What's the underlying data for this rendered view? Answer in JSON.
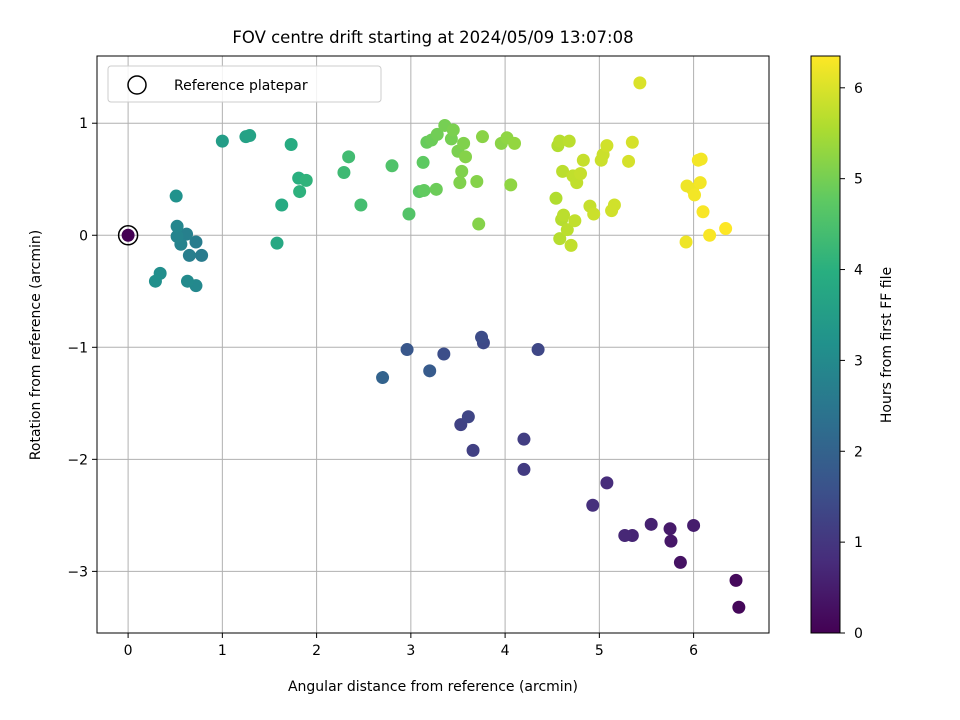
{
  "chart_data": {
    "type": "scatter",
    "title": "FOV centre drift starting at 2024/05/09 13:07:08",
    "xlabel": "Angular distance from reference (arcmin)",
    "ylabel": "Rotation from reference (arcmin)",
    "xlim": [
      -0.33,
      6.8
    ],
    "ylim": [
      -3.55,
      1.6
    ],
    "xticks": [
      0,
      1,
      2,
      3,
      4,
      5,
      6
    ],
    "yticks": [
      -3,
      -2,
      -1,
      0,
      1
    ],
    "xtick_labels": [
      "0",
      "1",
      "2",
      "3",
      "4",
      "5",
      "6"
    ],
    "ytick_labels": [
      "−3",
      "−2",
      "−1",
      "0",
      "1"
    ],
    "grid": true,
    "legend": {
      "position": "top-left",
      "entries": [
        {
          "label": "Reference platepar",
          "marker": "open-circle"
        }
      ]
    },
    "reference_point": {
      "x": 0,
      "y": 0
    },
    "colormap": "viridis",
    "colorbar": {
      "label": "Hours from first FF file",
      "range": [
        0,
        6.35
      ],
      "ticks": [
        0,
        1,
        2,
        3,
        4,
        5,
        6
      ],
      "tick_labels": [
        "0",
        "1",
        "2",
        "3",
        "4",
        "5",
        "6"
      ]
    },
    "points": [
      {
        "x": 0.0,
        "y": 0.0,
        "h": 0.0
      },
      {
        "x": 6.48,
        "y": -3.32,
        "h": 0.1
      },
      {
        "x": 6.45,
        "y": -3.08,
        "h": 0.15
      },
      {
        "x": 5.86,
        "y": -2.92,
        "h": 0.3
      },
      {
        "x": 5.76,
        "y": -2.73,
        "h": 0.4
      },
      {
        "x": 5.75,
        "y": -2.62,
        "h": 0.45
      },
      {
        "x": 6.0,
        "y": -2.59,
        "h": 0.5
      },
      {
        "x": 5.55,
        "y": -2.58,
        "h": 0.6
      },
      {
        "x": 5.35,
        "y": -2.68,
        "h": 0.65
      },
      {
        "x": 5.27,
        "y": -2.68,
        "h": 0.7
      },
      {
        "x": 5.08,
        "y": -2.21,
        "h": 0.8
      },
      {
        "x": 4.93,
        "y": -2.41,
        "h": 0.85
      },
      {
        "x": 4.2,
        "y": -2.09,
        "h": 1.1
      },
      {
        "x": 4.2,
        "y": -1.82,
        "h": 1.15
      },
      {
        "x": 3.66,
        "y": -1.92,
        "h": 1.2
      },
      {
        "x": 3.53,
        "y": -1.69,
        "h": 1.25
      },
      {
        "x": 3.61,
        "y": -1.62,
        "h": 1.3
      },
      {
        "x": 4.35,
        "y": -1.02,
        "h": 1.35
      },
      {
        "x": 3.77,
        "y": -0.96,
        "h": 1.4
      },
      {
        "x": 3.75,
        "y": -0.91,
        "h": 1.45
      },
      {
        "x": 3.35,
        "y": -1.06,
        "h": 1.5
      },
      {
        "x": 2.96,
        "y": -1.02,
        "h": 1.7
      },
      {
        "x": 3.2,
        "y": -1.21,
        "h": 1.8
      },
      {
        "x": 2.7,
        "y": -1.27,
        "h": 2.0
      },
      {
        "x": 0.78,
        "y": -0.18,
        "h": 2.6
      },
      {
        "x": 0.72,
        "y": -0.06,
        "h": 2.65
      },
      {
        "x": 0.65,
        "y": -0.18,
        "h": 2.7
      },
      {
        "x": 0.62,
        "y": 0.01,
        "h": 2.75
      },
      {
        "x": 0.56,
        "y": -0.08,
        "h": 2.8
      },
      {
        "x": 0.52,
        "y": -0.01,
        "h": 2.85
      },
      {
        "x": 0.52,
        "y": 0.08,
        "h": 2.9
      },
      {
        "x": 0.72,
        "y": -0.45,
        "h": 2.95
      },
      {
        "x": 0.63,
        "y": -0.41,
        "h": 3.0
      },
      {
        "x": 0.34,
        "y": -0.34,
        "h": 3.1
      },
      {
        "x": 0.29,
        "y": -0.41,
        "h": 3.15
      },
      {
        "x": 0.51,
        "y": 0.35,
        "h": 3.2
      },
      {
        "x": 1.0,
        "y": 0.84,
        "h": 3.5
      },
      {
        "x": 1.25,
        "y": 0.88,
        "h": 3.6
      },
      {
        "x": 1.29,
        "y": 0.89,
        "h": 3.65
      },
      {
        "x": 1.58,
        "y": -0.07,
        "h": 3.8
      },
      {
        "x": 1.63,
        "y": 0.27,
        "h": 3.85
      },
      {
        "x": 1.73,
        "y": 0.81,
        "h": 3.9
      },
      {
        "x": 1.81,
        "y": 0.51,
        "h": 4.0
      },
      {
        "x": 1.82,
        "y": 0.39,
        "h": 4.05
      },
      {
        "x": 1.89,
        "y": 0.49,
        "h": 4.1
      },
      {
        "x": 2.29,
        "y": 0.56,
        "h": 4.3
      },
      {
        "x": 2.34,
        "y": 0.7,
        "h": 4.35
      },
      {
        "x": 2.47,
        "y": 0.27,
        "h": 4.4
      },
      {
        "x": 2.8,
        "y": 0.62,
        "h": 4.55
      },
      {
        "x": 2.98,
        "y": 0.19,
        "h": 4.6
      },
      {
        "x": 3.09,
        "y": 0.39,
        "h": 4.7
      },
      {
        "x": 3.13,
        "y": 0.65,
        "h": 4.75
      },
      {
        "x": 3.14,
        "y": 0.4,
        "h": 4.8
      },
      {
        "x": 3.17,
        "y": 0.83,
        "h": 4.85
      },
      {
        "x": 3.27,
        "y": 0.41,
        "h": 4.9
      },
      {
        "x": 3.22,
        "y": 0.85,
        "h": 4.9
      },
      {
        "x": 3.28,
        "y": 0.9,
        "h": 4.95
      },
      {
        "x": 3.36,
        "y": 0.98,
        "h": 5.0
      },
      {
        "x": 3.43,
        "y": 0.86,
        "h": 5.0
      },
      {
        "x": 3.45,
        "y": 0.94,
        "h": 5.05
      },
      {
        "x": 3.5,
        "y": 0.75,
        "h": 5.05
      },
      {
        "x": 3.52,
        "y": 0.47,
        "h": 5.1
      },
      {
        "x": 3.54,
        "y": 0.57,
        "h": 5.1
      },
      {
        "x": 3.56,
        "y": 0.82,
        "h": 5.1
      },
      {
        "x": 3.58,
        "y": 0.7,
        "h": 5.15
      },
      {
        "x": 3.7,
        "y": 0.48,
        "h": 5.15
      },
      {
        "x": 3.72,
        "y": 0.1,
        "h": 5.15
      },
      {
        "x": 3.76,
        "y": 0.88,
        "h": 5.2
      },
      {
        "x": 3.96,
        "y": 0.82,
        "h": 5.2
      },
      {
        "x": 4.02,
        "y": 0.87,
        "h": 5.25
      },
      {
        "x": 4.06,
        "y": 0.45,
        "h": 5.25
      },
      {
        "x": 4.1,
        "y": 0.82,
        "h": 5.3
      },
      {
        "x": 4.54,
        "y": 0.33,
        "h": 5.6
      },
      {
        "x": 4.56,
        "y": 0.8,
        "h": 5.6
      },
      {
        "x": 4.58,
        "y": 0.84,
        "h": 5.65
      },
      {
        "x": 4.6,
        "y": 0.14,
        "h": 5.65
      },
      {
        "x": 4.58,
        "y": -0.03,
        "h": 5.65
      },
      {
        "x": 4.61,
        "y": 0.57,
        "h": 5.7
      },
      {
        "x": 4.62,
        "y": 0.18,
        "h": 5.7
      },
      {
        "x": 4.66,
        "y": 0.05,
        "h": 5.7
      },
      {
        "x": 4.68,
        "y": 0.84,
        "h": 5.7
      },
      {
        "x": 4.7,
        "y": -0.09,
        "h": 5.75
      },
      {
        "x": 4.72,
        "y": 0.53,
        "h": 5.75
      },
      {
        "x": 4.74,
        "y": 0.13,
        "h": 5.75
      },
      {
        "x": 4.76,
        "y": 0.47,
        "h": 5.75
      },
      {
        "x": 4.8,
        "y": 0.55,
        "h": 5.8
      },
      {
        "x": 4.83,
        "y": 0.67,
        "h": 5.8
      },
      {
        "x": 4.9,
        "y": 0.26,
        "h": 5.8
      },
      {
        "x": 4.94,
        "y": 0.19,
        "h": 5.85
      },
      {
        "x": 5.02,
        "y": 0.67,
        "h": 5.85
      },
      {
        "x": 5.04,
        "y": 0.72,
        "h": 5.85
      },
      {
        "x": 5.08,
        "y": 0.8,
        "h": 5.9
      },
      {
        "x": 5.13,
        "y": 0.22,
        "h": 5.9
      },
      {
        "x": 5.16,
        "y": 0.27,
        "h": 5.9
      },
      {
        "x": 5.31,
        "y": 0.66,
        "h": 5.95
      },
      {
        "x": 5.35,
        "y": 0.83,
        "h": 5.95
      },
      {
        "x": 5.43,
        "y": 1.36,
        "h": 6.0
      },
      {
        "x": 5.92,
        "y": -0.06,
        "h": 6.2
      },
      {
        "x": 5.93,
        "y": 0.44,
        "h": 6.2
      },
      {
        "x": 5.99,
        "y": 0.41,
        "h": 6.2
      },
      {
        "x": 6.01,
        "y": 0.36,
        "h": 6.25
      },
      {
        "x": 6.05,
        "y": 0.67,
        "h": 6.25
      },
      {
        "x": 6.07,
        "y": 0.47,
        "h": 6.25
      },
      {
        "x": 6.08,
        "y": 0.68,
        "h": 6.25
      },
      {
        "x": 6.1,
        "y": 0.21,
        "h": 6.3
      },
      {
        "x": 6.17,
        "y": 0.0,
        "h": 6.3
      },
      {
        "x": 6.34,
        "y": 0.06,
        "h": 6.35
      }
    ]
  }
}
